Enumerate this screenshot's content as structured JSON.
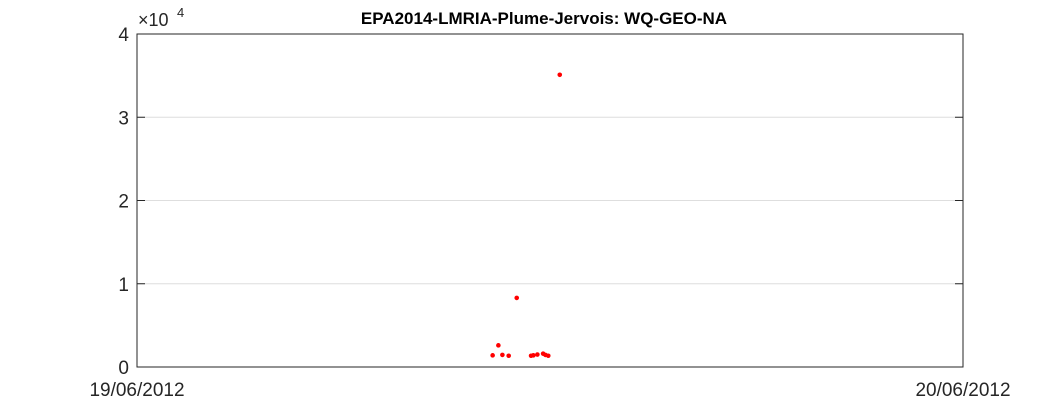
{
  "chart_data": {
    "type": "scatter",
    "title": "EPA2014-LMRIA-Plume-Jervois: WQ-GEO-NA",
    "xlabel": "",
    "ylabel": "",
    "xlim": [
      "19/06/2012 00:00",
      "20/06/2012 00:00"
    ],
    "ylim": [
      0,
      40000
    ],
    "x_tick_labels": [
      "19/06/2012",
      "20/06/2012"
    ],
    "y_tick_labels": [
      "0",
      "1",
      "2",
      "3",
      "4"
    ],
    "y_exponent_label": {
      "base": "×10",
      "power": "4"
    },
    "grid": "horizontal",
    "legend": "none",
    "series": [
      {
        "color": "#ff0000",
        "points": [
          {
            "x": "19/06/2012 10:20",
            "y": 1400
          },
          {
            "x": "19/06/2012 10:30",
            "y": 2600
          },
          {
            "x": "19/06/2012 10:37",
            "y": 1450
          },
          {
            "x": "19/06/2012 10:48",
            "y": 1350
          },
          {
            "x": "19/06/2012 11:02",
            "y": 8300
          },
          {
            "x": "19/06/2012 11:27",
            "y": 1350
          },
          {
            "x": "19/06/2012 11:31",
            "y": 1400
          },
          {
            "x": "19/06/2012 11:38",
            "y": 1500
          },
          {
            "x": "19/06/2012 11:48",
            "y": 1600
          },
          {
            "x": "19/06/2012 11:52",
            "y": 1450
          },
          {
            "x": "19/06/2012 11:57",
            "y": 1350
          },
          {
            "x": "19/06/2012 12:17",
            "y": 35100
          }
        ]
      }
    ]
  }
}
